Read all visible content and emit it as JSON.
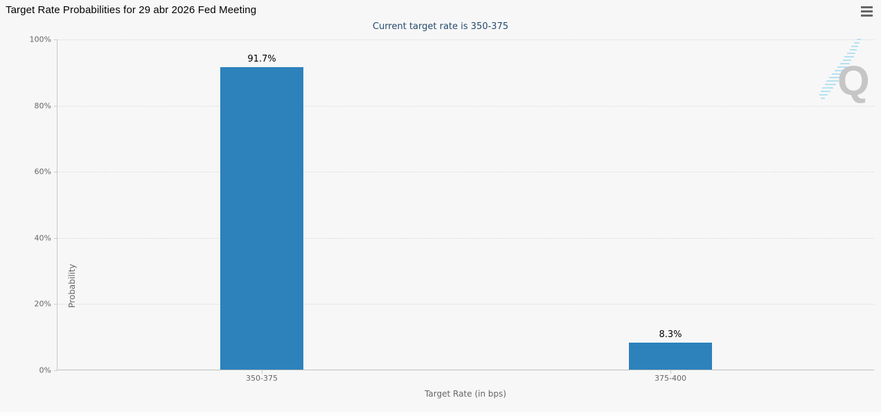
{
  "header": {
    "title": "Target Rate Probabilities for 29 abr 2026 Fed Meeting",
    "subtitle": "Current target rate is 350-375"
  },
  "icons": {
    "menu": "hamburger-icon",
    "watermark": "quikstrike-logo-icon"
  },
  "watermark": {
    "letter": "Q"
  },
  "colors": {
    "background": "#f7f7f7",
    "bar": "#2d82bc",
    "title_text": "#000000",
    "subtitle_text": "#274b6d",
    "axis_label": "#666666",
    "axis_line": "#c0c0c0",
    "gridline": "#d8d8d8",
    "data_label": "#000000",
    "menu_icon": "#666666",
    "watermark_q": "#c6c6c6",
    "watermark_stripes": "#abdef2"
  },
  "chart_data": {
    "type": "bar",
    "title": "Target Rate Probabilities for 29 abr 2026 Fed Meeting",
    "subtitle": "Current target rate is 350-375",
    "categories": [
      "350-375",
      "375-400"
    ],
    "values": [
      91.7,
      8.3
    ],
    "value_labels": [
      "91.7%",
      "8.3%"
    ],
    "xlabel": "Target Rate (in bps)",
    "ylabel": "Probability",
    "ylim": [
      0,
      100
    ],
    "yticks": [
      0,
      20,
      40,
      60,
      80,
      100
    ],
    "ytick_labels": [
      "0%",
      "20%",
      "40%",
      "60%",
      "80%",
      "100%"
    ],
    "grid": "horizontal-dotted",
    "legend": "none",
    "bar_color": "#2d82bc"
  }
}
